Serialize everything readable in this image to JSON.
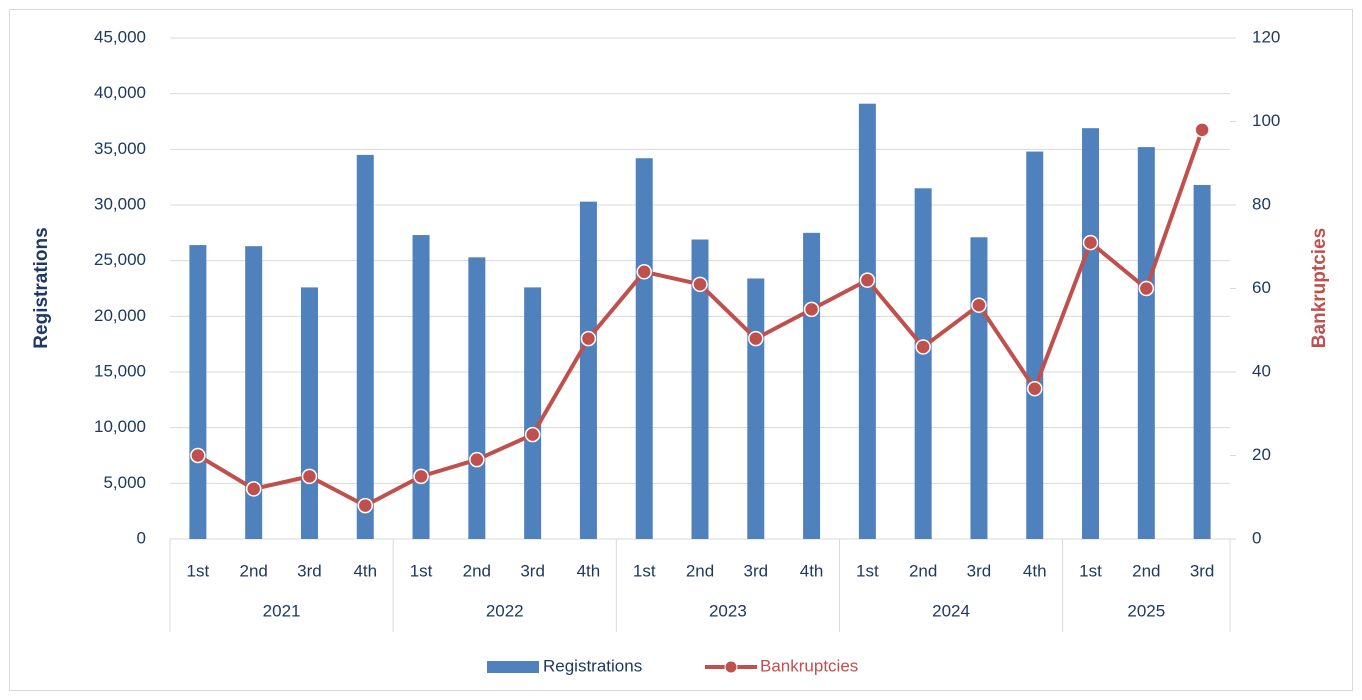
{
  "chart_data": {
    "type": "bar-line",
    "categories": [
      "1st",
      "2nd",
      "3rd",
      "4th",
      "1st",
      "2nd",
      "3rd",
      "4th",
      "1st",
      "2nd",
      "3rd",
      "4th",
      "1st",
      "2nd",
      "3rd",
      "4th",
      "1st",
      "2nd",
      "3rd"
    ],
    "groups": [
      "2021",
      "2022",
      "2023",
      "2024",
      "2025"
    ],
    "y_label": "Registrations",
    "y2_label": "Bankruptcies",
    "series": [
      {
        "name": "Registrations",
        "color": "#4f81bd",
        "type": "bar",
        "values": [
          26400,
          26300,
          22600,
          34500,
          27300,
          25300,
          22600,
          30300,
          34200,
          26900,
          23400,
          27500,
          39100,
          31500,
          27100,
          34800,
          36900,
          35200,
          31800
        ]
      },
      {
        "name": "Bankruptcies",
        "color": "#c0504d",
        "type": "line",
        "axis": "y2",
        "values": [
          20,
          12,
          15,
          8,
          15,
          19,
          25,
          48,
          64,
          61,
          48,
          55,
          62,
          46,
          56,
          36,
          71,
          60,
          98
        ]
      }
    ],
    "ylim": [
      0,
      45000
    ],
    "yticks": [
      0,
      {
        "value": 5000,
        "label": "5,000"
      },
      {
        "value": 10000,
        "label": "10,000"
      },
      {
        "value": 15000,
        "label": "15,000"
      },
      {
        "value": 20000,
        "label": "20,000"
      },
      {
        "value": 25000,
        "label": "25,000"
      },
      {
        "value": 30000,
        "label": "30,000"
      },
      {
        "value": 35000,
        "label": "35,000"
      },
      {
        "value": 40000,
        "label": "40,000"
      },
      {
        "value": 45000,
        "label": "45,000"
      }
    ],
    "y2lim": [
      0,
      120
    ],
    "y2ticks": [
      0,
      20,
      40,
      60,
      80,
      100,
      120
    ],
    "grid": true,
    "legend": "bottom"
  }
}
